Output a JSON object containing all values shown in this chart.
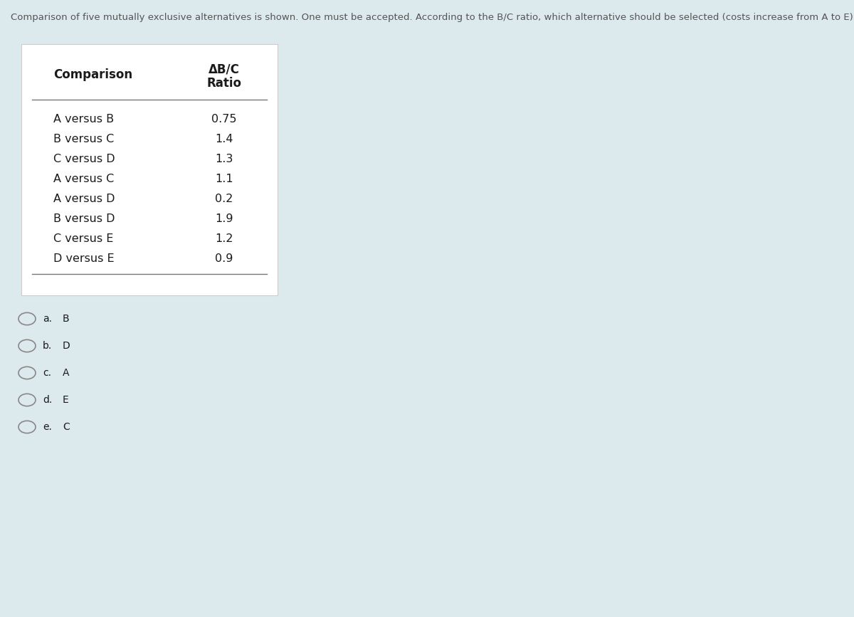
{
  "question_text": "Comparison of five mutually exclusive alternatives is shown. One must be accepted. According to the B/C ratio, which alternative should be selected (costs increase from A to E).",
  "col1_header": "Comparison",
  "col2_header_line1": "ΔB/C",
  "col2_header_line2": "Ratio",
  "rows": [
    [
      "A versus B",
      "0.75"
    ],
    [
      "B versus C",
      "1.4"
    ],
    [
      "C versus D",
      "1.3"
    ],
    [
      "A versus C",
      "1.1"
    ],
    [
      "A versus D",
      "0.2"
    ],
    [
      "B versus D",
      "1.9"
    ],
    [
      "C versus E",
      "1.2"
    ],
    [
      "D versus E",
      "0.9"
    ]
  ],
  "options": [
    [
      "a.",
      "B"
    ],
    [
      "b.",
      "D"
    ],
    [
      "c.",
      "A"
    ],
    [
      "d.",
      "E"
    ],
    [
      "e.",
      "C"
    ]
  ],
  "bg_color": "#dce9ed",
  "table_bg_color": "#ffffff",
  "question_color": "#555555",
  "text_color": "#1a1a1a",
  "line_color": "#777777"
}
